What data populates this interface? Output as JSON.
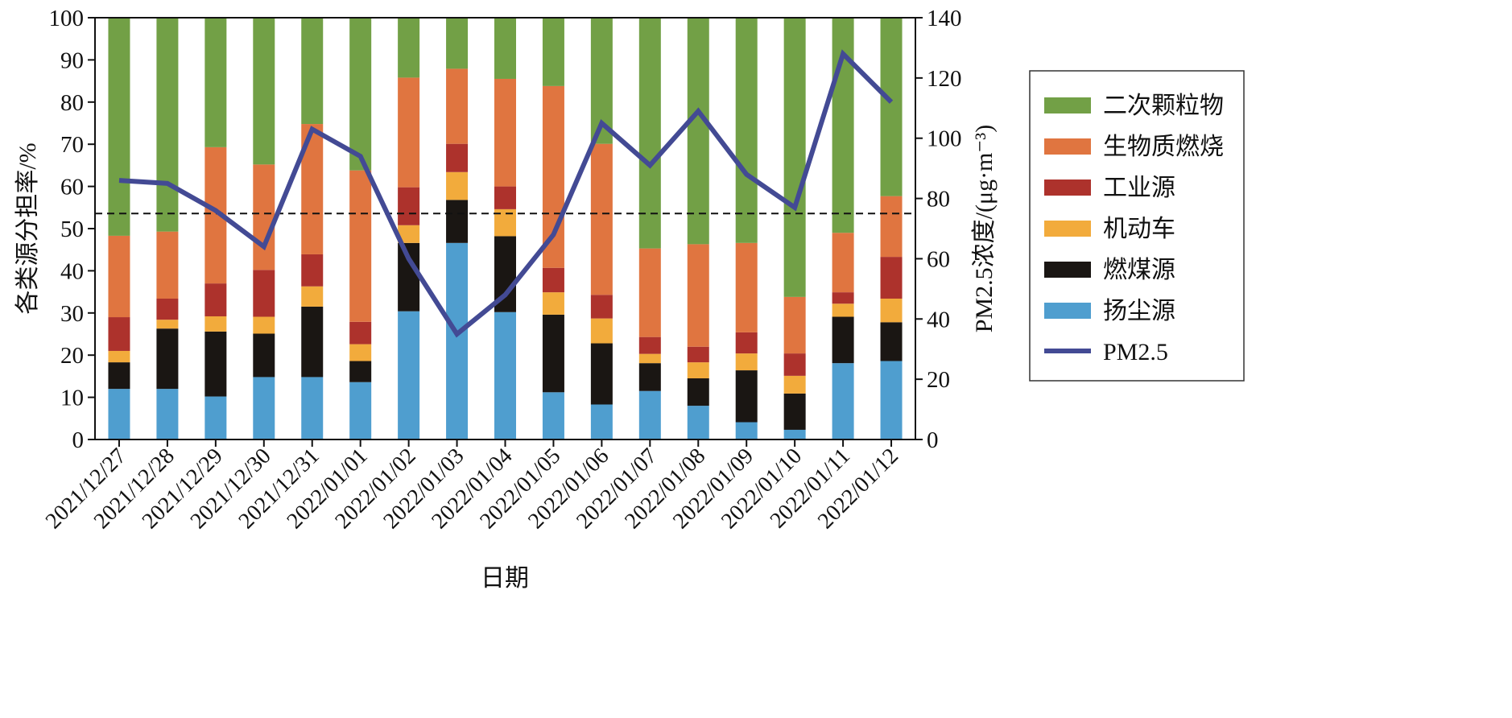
{
  "chart_data": {
    "type": "bar",
    "stacked": true,
    "xlabel": "日期",
    "ylabel": "各类源分担率/%",
    "ylabel_right": "PM2.5浓度/(μg·m⁻³)",
    "ylim": [
      0,
      100
    ],
    "ylim_right": [
      0,
      140
    ],
    "yticks": [
      0,
      10,
      20,
      30,
      40,
      50,
      60,
      70,
      80,
      90,
      100
    ],
    "yticks_right": [
      0,
      20,
      40,
      60,
      80,
      100,
      120,
      140
    ],
    "legend_position": "right",
    "categories": [
      "2021/12/27",
      "2021/12/28",
      "2021/12/29",
      "2021/12/30",
      "2021/12/31",
      "2022/01/01",
      "2022/01/02",
      "2022/01/03",
      "2022/01/04",
      "2022/01/05",
      "2022/01/06",
      "2022/01/07",
      "2022/01/08",
      "2022/01/09",
      "2022/01/10",
      "2022/01/11",
      "2022/01/12"
    ],
    "series": [
      {
        "name": "扬尘源",
        "color": "#4f9ecf",
        "values": [
          12.0,
          12.0,
          10.2,
          14.8,
          14.8,
          13.6,
          30.4,
          46.6,
          30.2,
          11.2,
          8.3,
          11.5,
          8.0,
          4.1,
          2.3,
          18.1,
          18.6
        ]
      },
      {
        "name": "燃煤源",
        "color": "#1a1613",
        "values": [
          6.3,
          14.3,
          15.4,
          10.3,
          16.7,
          5.0,
          16.2,
          10.2,
          18.0,
          18.4,
          14.5,
          6.6,
          6.5,
          12.3,
          8.6,
          11.0,
          9.2
        ]
      },
      {
        "name": "机动车",
        "color": "#f2ab3c",
        "values": [
          2.7,
          2.1,
          3.6,
          4.0,
          4.8,
          4.0,
          4.2,
          6.6,
          6.4,
          5.3,
          5.9,
          2.2,
          3.8,
          4.0,
          4.2,
          3.1,
          5.6
        ]
      },
      {
        "name": "工业源",
        "color": "#ad322c",
        "values": [
          8.0,
          5.0,
          7.8,
          11.1,
          7.6,
          5.3,
          9.0,
          6.7,
          5.4,
          5.8,
          5.6,
          4.0,
          3.7,
          5.0,
          5.3,
          2.7,
          9.9
        ]
      },
      {
        "name": "生物质燃烧",
        "color": "#e07540",
        "values": [
          19.3,
          15.9,
          32.3,
          25.0,
          30.9,
          35.9,
          26.0,
          17.8,
          25.5,
          43.1,
          35.8,
          21.0,
          24.3,
          21.2,
          13.4,
          14.1,
          14.4
        ]
      },
      {
        "name": "二次颗粒物",
        "color": "#72a046",
        "values": [
          51.7,
          50.7,
          30.7,
          34.8,
          25.2,
          36.2,
          14.2,
          12.1,
          14.5,
          16.2,
          29.9,
          54.7,
          53.7,
          53.4,
          66.2,
          51.0,
          42.3
        ]
      }
    ],
    "line": {
      "name": "PM2.5",
      "color": "#434a94",
      "axis": "right",
      "values": [
        86,
        85,
        76,
        64,
        103,
        94,
        60,
        35,
        48,
        68,
        105,
        91,
        109,
        88,
        77,
        128,
        112
      ]
    },
    "reference_line": {
      "axis": "right",
      "value": 75,
      "style": "dashed"
    },
    "legend_order": [
      "二次颗粒物",
      "生物质燃烧",
      "工业源",
      "机动车",
      "燃煤源",
      "扬尘源",
      "PM2.5"
    ]
  }
}
